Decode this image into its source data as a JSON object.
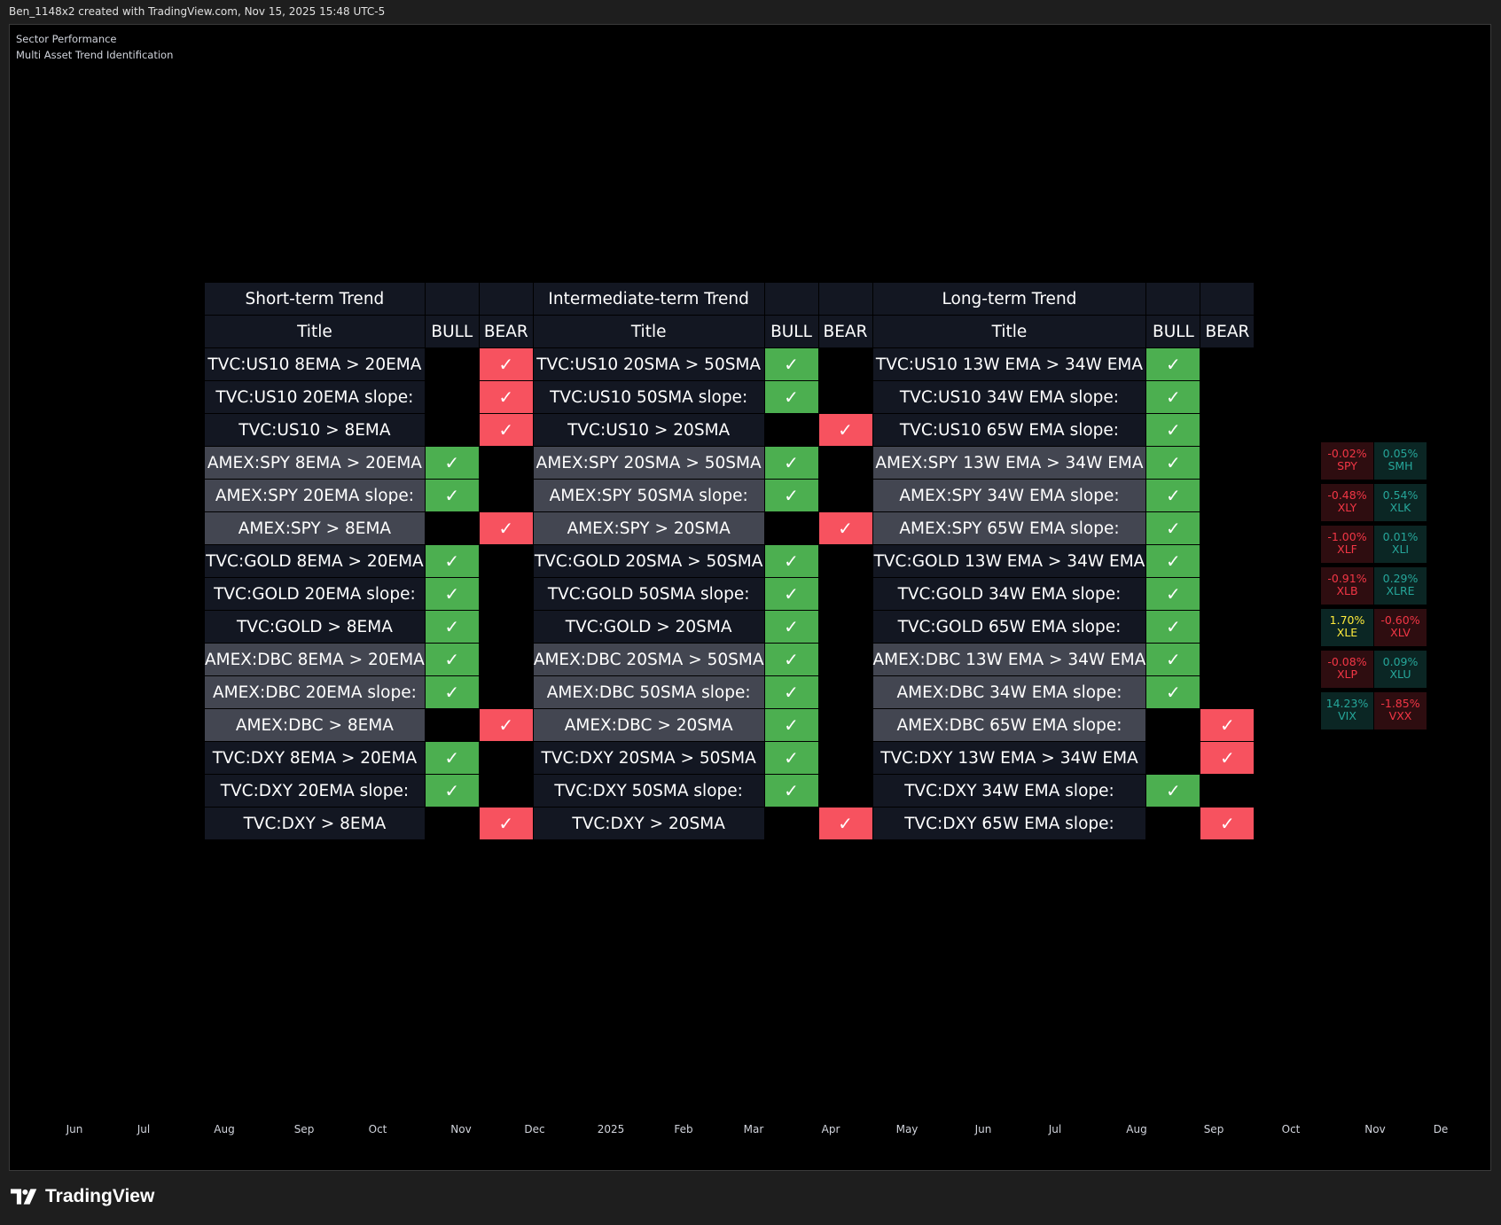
{
  "topbar": "Ben_1148x2 created with TradingView.com, Nov 15, 2025 15:48 UTC-5",
  "legend": {
    "line1": "Sector Performance",
    "line2": "Multi Asset Trend Identification"
  },
  "headers": {
    "short": "Short-term Trend",
    "intermediate": "Intermediate-term Trend",
    "long": "Long-term Trend",
    "title": "Title",
    "bull": "BULL",
    "bear": "BEAR"
  },
  "check": "✓",
  "rows": [
    {
      "shade": 0,
      "s": "TVC:US10 8EMA > 20EMA",
      "sv": "bear",
      "i": "TVC:US10 20SMA > 50SMA",
      "iv": "bull",
      "l": "TVC:US10 13W EMA > 34W EMA",
      "lv": "bull"
    },
    {
      "shade": 0,
      "s": "TVC:US10 20EMA slope:",
      "sv": "bear",
      "i": "TVC:US10 50SMA slope:",
      "iv": "bull",
      "l": "TVC:US10 34W EMA slope:",
      "lv": "bull"
    },
    {
      "shade": 0,
      "s": "TVC:US10 > 8EMA",
      "sv": "bear",
      "i": "TVC:US10 > 20SMA",
      "iv": "bear",
      "l": "TVC:US10 65W EMA slope:",
      "lv": "bull"
    },
    {
      "shade": 1,
      "s": "AMEX:SPY 8EMA > 20EMA",
      "sv": "bull",
      "i": "AMEX:SPY 20SMA > 50SMA",
      "iv": "bull",
      "l": "AMEX:SPY 13W EMA > 34W EMA",
      "lv": "bull"
    },
    {
      "shade": 1,
      "s": "AMEX:SPY 20EMA slope:",
      "sv": "bull",
      "i": "AMEX:SPY 50SMA slope:",
      "iv": "bull",
      "l": "AMEX:SPY 34W EMA slope:",
      "lv": "bull"
    },
    {
      "shade": 1,
      "s": "AMEX:SPY > 8EMA",
      "sv": "bear",
      "i": "AMEX:SPY > 20SMA",
      "iv": "bear",
      "l": "AMEX:SPY 65W EMA slope:",
      "lv": "bull"
    },
    {
      "shade": 0,
      "s": "TVC:GOLD 8EMA > 20EMA",
      "sv": "bull",
      "i": "TVC:GOLD 20SMA > 50SMA",
      "iv": "bull",
      "l": "TVC:GOLD 13W EMA > 34W EMA",
      "lv": "bull"
    },
    {
      "shade": 0,
      "s": "TVC:GOLD 20EMA slope:",
      "sv": "bull",
      "i": "TVC:GOLD 50SMA slope:",
      "iv": "bull",
      "l": "TVC:GOLD 34W EMA slope:",
      "lv": "bull"
    },
    {
      "shade": 0,
      "s": "TVC:GOLD > 8EMA",
      "sv": "bull",
      "i": "TVC:GOLD > 20SMA",
      "iv": "bull",
      "l": "TVC:GOLD 65W EMA slope:",
      "lv": "bull"
    },
    {
      "shade": 1,
      "s": "AMEX:DBC 8EMA > 20EMA",
      "sv": "bull",
      "i": "AMEX:DBC 20SMA > 50SMA",
      "iv": "bull",
      "l": "AMEX:DBC 13W EMA > 34W EMA",
      "lv": "bull"
    },
    {
      "shade": 1,
      "s": "AMEX:DBC 20EMA slope:",
      "sv": "bull",
      "i": "AMEX:DBC 50SMA slope:",
      "iv": "bull",
      "l": "AMEX:DBC 34W EMA slope:",
      "lv": "bull"
    },
    {
      "shade": 1,
      "s": "AMEX:DBC > 8EMA",
      "sv": "bear",
      "i": "AMEX:DBC > 20SMA",
      "iv": "bull",
      "l": "AMEX:DBC 65W EMA slope:",
      "lv": "bear"
    },
    {
      "shade": 0,
      "s": "TVC:DXY 8EMA > 20EMA",
      "sv": "bull",
      "i": "TVC:DXY 20SMA > 50SMA",
      "iv": "bull",
      "l": "TVC:DXY 13W EMA > 34W EMA",
      "lv": "bear"
    },
    {
      "shade": 0,
      "s": "TVC:DXY 20EMA slope:",
      "sv": "bull",
      "i": "TVC:DXY 50SMA slope:",
      "iv": "bull",
      "l": "TVC:DXY 34W EMA slope:",
      "lv": "bull"
    },
    {
      "shade": 0,
      "s": "TVC:DXY > 8EMA",
      "sv": "bear",
      "i": "TVC:DXY > 20SMA",
      "iv": "bear",
      "l": "TVC:DXY 65W EMA slope:",
      "lv": "bear"
    }
  ],
  "sectors": [
    [
      {
        "pct": "-0.02%",
        "sym": "SPY",
        "tone": "neg"
      },
      {
        "pct": "0.05%",
        "sym": "SMH",
        "tone": "pos"
      }
    ],
    [
      {
        "pct": "-0.48%",
        "sym": "XLY",
        "tone": "neg"
      },
      {
        "pct": "0.54%",
        "sym": "XLK",
        "tone": "pos"
      }
    ],
    [
      {
        "pct": "-1.00%",
        "sym": "XLF",
        "tone": "neg"
      },
      {
        "pct": "0.01%",
        "sym": "XLI",
        "tone": "pos"
      }
    ],
    [
      {
        "pct": "-0.91%",
        "sym": "XLB",
        "tone": "neg"
      },
      {
        "pct": "0.29%",
        "sym": "XLRE",
        "tone": "pos"
      }
    ],
    [
      {
        "pct": "1.70%",
        "sym": "XLE",
        "tone": "hi"
      },
      {
        "pct": "-0.60%",
        "sym": "XLV",
        "tone": "neg"
      }
    ],
    [
      {
        "pct": "-0.08%",
        "sym": "XLP",
        "tone": "neg"
      },
      {
        "pct": "0.09%",
        "sym": "XLU",
        "tone": "pos"
      }
    ],
    [
      {
        "pct": "14.23%",
        "sym": "VIX",
        "tone": "pos"
      },
      {
        "pct": "-1.85%",
        "sym": "VXX",
        "tone": "neg"
      }
    ]
  ],
  "axis_labels": [
    "Jun",
    "Jul",
    "Aug",
    "Sep",
    "Oct",
    "Nov",
    "Dec",
    "2025",
    "Feb",
    "Mar",
    "Apr",
    "May",
    "Jun",
    "Jul",
    "Aug",
    "Sep",
    "Oct",
    "Nov",
    "De"
  ],
  "brand": "TradingView"
}
